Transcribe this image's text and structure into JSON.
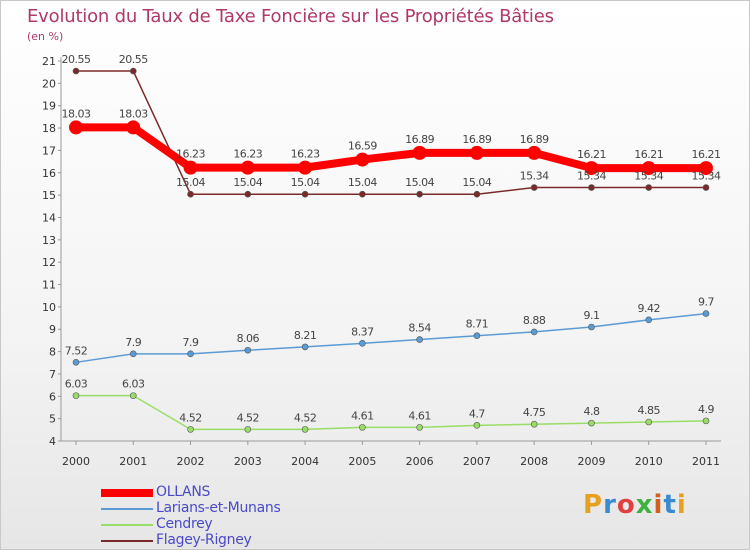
{
  "header": {
    "title": "Evolution du Taux de Taxe Foncière sur les Propriétés Bâties",
    "unit": "(en %)"
  },
  "logo": {
    "text": "Proxiti",
    "colors": [
      "#e8a020",
      "#3a8ad0",
      "#e04040",
      "#40b040",
      "#d06020",
      "#3a8ad0",
      "#e8a020"
    ]
  },
  "chart_data": {
    "type": "line",
    "x": [
      "2000",
      "2001",
      "2002",
      "2003",
      "2004",
      "2005",
      "2006",
      "2007",
      "2008",
      "2009",
      "2010",
      "2011"
    ],
    "ylim": [
      4,
      21
    ],
    "yticks": [
      "4",
      "5",
      "6",
      "7",
      "8",
      "9",
      "10",
      "11",
      "12",
      "13",
      "14",
      "15",
      "16",
      "17",
      "18",
      "19",
      "20",
      "21"
    ],
    "grid": false,
    "legend_position": "bottom-left",
    "series": [
      {
        "name": "OLLANS",
        "color": "#ff0000",
        "values": [
          18.03,
          18.03,
          16.23,
          16.23,
          16.23,
          16.59,
          16.89,
          16.89,
          16.89,
          16.21,
          16.21,
          16.21
        ],
        "labels": [
          "18.03",
          "18.03",
          "16.23",
          "16.23",
          "16.23",
          "16.59",
          "16.89",
          "16.89",
          "16.89",
          "16.21",
          "16.21",
          "16.21"
        ]
      },
      {
        "name": "Larians-et-Munans",
        "color": "#5b9bd5",
        "values": [
          7.52,
          7.9,
          7.9,
          8.06,
          8.21,
          8.37,
          8.54,
          8.71,
          8.88,
          9.1,
          9.42,
          9.7
        ],
        "labels": [
          "7.52",
          "7.9",
          "7.9",
          "8.06",
          "8.21",
          "8.37",
          "8.54",
          "8.71",
          "8.88",
          "9.1",
          "9.42",
          "9.7"
        ]
      },
      {
        "name": "Cendrey",
        "color": "#99dd66",
        "values": [
          6.03,
          6.03,
          4.52,
          4.52,
          4.52,
          4.61,
          4.61,
          4.7,
          4.75,
          4.8,
          4.85,
          4.9
        ],
        "labels": [
          "6.03",
          "6.03",
          "4.52",
          "4.52",
          "4.52",
          "4.61",
          "4.61",
          "4.7",
          "4.75",
          "4.8",
          "4.85",
          "4.9"
        ]
      },
      {
        "name": "Flagey-Rigney",
        "color": "#7a2a2a",
        "values": [
          20.55,
          20.55,
          15.04,
          15.04,
          15.04,
          15.04,
          15.04,
          15.04,
          15.34,
          15.34,
          15.34,
          15.34
        ],
        "labels": [
          "20.55",
          "20.55",
          "15.04",
          "15.04",
          "15.04",
          "15.04",
          "15.04",
          "15.04",
          "15.34",
          "15.34",
          "15.34",
          "15.34"
        ]
      }
    ]
  }
}
